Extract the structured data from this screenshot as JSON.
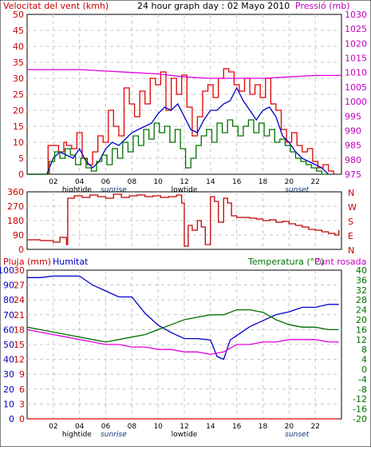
{
  "chart_data": [
    {
      "type": "line",
      "title": "24 hour graph day : 02 Mayo 2010",
      "left_label": "Velocitat del vent (kmh)",
      "right_label": "Pressió (mb)",
      "xlim": [
        0,
        24
      ],
      "x_ticks": [
        "02",
        "04",
        "06",
        "08",
        "10",
        "12",
        "14",
        "16",
        "18",
        "20",
        "22"
      ],
      "tide_sun_labels": [
        {
          "text": "hightide",
          "at": 3.8
        },
        {
          "text": "sunrise",
          "at": 6.6
        },
        {
          "text": "lowtide",
          "at": 12.0
        },
        {
          "text": "sunset",
          "at": 20.6
        }
      ],
      "left_ticks": [
        0,
        5,
        10,
        15,
        20,
        25,
        30,
        35,
        40,
        45,
        50
      ],
      "right_ticks": [
        975,
        980,
        985,
        990,
        995,
        1000,
        1005,
        1010,
        1015,
        1020,
        1025,
        1030
      ],
      "ylim_left": [
        0,
        50
      ],
      "ylim_right": [
        975,
        1030
      ],
      "grid": true,
      "series": [
        {
          "name": "Velocitat del vent (kmh)",
          "axis": "left",
          "color": "#e00000",
          "step": true,
          "x": [
            0,
            1.5,
            1.6,
            2.0,
            2.4,
            2.8,
            3.0,
            3.4,
            3.8,
            4.2,
            4.6,
            5.0,
            5.4,
            5.8,
            6.2,
            6.6,
            7.0,
            7.4,
            7.8,
            8.2,
            8.6,
            9.0,
            9.4,
            9.8,
            10.2,
            10.6,
            11.0,
            11.4,
            11.8,
            12.2,
            12.6,
            13.0,
            13.4,
            13.8,
            14.2,
            14.6,
            15.0,
            15.4,
            15.8,
            16.2,
            16.6,
            17.0,
            17.4,
            17.8,
            18.2,
            18.6,
            19.0,
            19.4,
            19.8,
            20.2,
            20.6,
            21.0,
            21.4,
            21.8,
            22.2,
            22.6,
            23.0,
            23.4
          ],
          "y": [
            0,
            0,
            9,
            9,
            7,
            10,
            9,
            8,
            13,
            5,
            3,
            7,
            12,
            10,
            20,
            15,
            12,
            27,
            22,
            18,
            26,
            22,
            30,
            28,
            32,
            20,
            30,
            25,
            31,
            21,
            12,
            18,
            26,
            28,
            24,
            30,
            33,
            32,
            28,
            26,
            30,
            25,
            28,
            24,
            30,
            22,
            20,
            14,
            10,
            13,
            9,
            7,
            8,
            4,
            2,
            3,
            1,
            0
          ]
        },
        {
          "name": "Velocitat mitjana",
          "axis": "left",
          "color": "#0000c8",
          "step": false,
          "x": [
            0,
            1.5,
            2.0,
            2.5,
            3.0,
            3.5,
            4.0,
            4.5,
            5.0,
            5.5,
            6.0,
            6.5,
            7.0,
            7.5,
            8.0,
            8.5,
            9.0,
            9.5,
            10.0,
            10.5,
            11.0,
            11.5,
            12.0,
            12.5,
            13.0,
            13.5,
            14.0,
            14.5,
            15.0,
            15.5,
            16.0,
            16.5,
            17.0,
            17.5,
            18.0,
            18.5,
            19.0,
            19.5,
            20.0,
            20.5,
            21.0,
            21.5,
            22.0,
            22.5,
            23.0
          ],
          "y": [
            0,
            0,
            5,
            7,
            6,
            5,
            8,
            4,
            2,
            4,
            8,
            10,
            9,
            11,
            13,
            14,
            15,
            16,
            19,
            21,
            20,
            22,
            18,
            14,
            13,
            17,
            20,
            20,
            22,
            23,
            27,
            23,
            20,
            17,
            20,
            21,
            18,
            12,
            10,
            7,
            5,
            4,
            3,
            2,
            0
          ]
        },
        {
          "name": "Ratxa",
          "axis": "left",
          "color": "#007000",
          "step": true,
          "x": [
            0,
            1.5,
            1.7,
            2.1,
            2.5,
            2.9,
            3.3,
            3.7,
            4.1,
            4.5,
            4.9,
            5.3,
            5.7,
            6.1,
            6.5,
            6.9,
            7.3,
            7.7,
            8.1,
            8.5,
            8.9,
            9.3,
            9.7,
            10.1,
            10.5,
            10.9,
            11.3,
            11.7,
            12.1,
            12.5,
            12.9,
            13.3,
            13.7,
            14.1,
            14.5,
            14.9,
            15.3,
            15.7,
            16.1,
            16.5,
            16.9,
            17.3,
            17.7,
            18.1,
            18.5,
            18.9,
            19.3,
            19.7,
            20.1,
            20.5,
            20.9,
            21.3,
            21.7,
            22.1,
            22.5,
            23.0
          ],
          "y": [
            0,
            0,
            4,
            7,
            5,
            8,
            6,
            3,
            5,
            2,
            1,
            4,
            6,
            3,
            8,
            5,
            10,
            7,
            12,
            9,
            14,
            11,
            16,
            13,
            15,
            10,
            14,
            8,
            2,
            5,
            9,
            12,
            14,
            10,
            16,
            13,
            17,
            15,
            12,
            15,
            17,
            13,
            16,
            12,
            14,
            10,
            11,
            9,
            7,
            5,
            4,
            3,
            2,
            1,
            0,
            0
          ]
        },
        {
          "name": "Pressió (mb)",
          "axis": "right",
          "color": "#e000e0",
          "step": false,
          "x": [
            0,
            2,
            4,
            6,
            8,
            10,
            12,
            14,
            16,
            18,
            20,
            22,
            24
          ],
          "y": [
            1011,
            1011,
            1011,
            1010.5,
            1010,
            1009.5,
            1008.5,
            1008,
            1008,
            1008,
            1008.5,
            1009,
            1009
          ]
        }
      ]
    },
    {
      "type": "line",
      "title": "",
      "left_ticks": [
        0,
        90,
        180,
        270,
        360
      ],
      "right_labels": [
        "N",
        "W",
        "S",
        "E",
        "N"
      ],
      "ylim": [
        0,
        360
      ],
      "grid": true,
      "series": [
        {
          "name": "Direcció del vent",
          "color": "#c00000",
          "step": true,
          "x": [
            0,
            1.0,
            2.0,
            2.5,
            3.0,
            3.1,
            3.6,
            4.2,
            4.8,
            5.4,
            6.0,
            6.6,
            7.2,
            7.8,
            8.4,
            9.0,
            9.6,
            10.2,
            10.8,
            11.4,
            11.8,
            12.0,
            12.3,
            12.6,
            13.0,
            13.3,
            13.6,
            14.0,
            14.3,
            14.6,
            15.0,
            15.3,
            15.6,
            16.0,
            16.5,
            17.0,
            17.5,
            18.0,
            18.5,
            19.0,
            19.5,
            20.0,
            20.5,
            21.0,
            21.5,
            22.0,
            22.5,
            23.0,
            23.5,
            23.8
          ],
          "y": [
            60,
            55,
            45,
            75,
            30,
            320,
            335,
            325,
            340,
            330,
            320,
            345,
            325,
            335,
            340,
            330,
            335,
            325,
            330,
            340,
            290,
            20,
            150,
            120,
            180,
            140,
            30,
            330,
            300,
            170,
            320,
            290,
            210,
            200,
            200,
            195,
            190,
            180,
            185,
            170,
            175,
            160,
            150,
            140,
            125,
            120,
            110,
            100,
            90,
            120
          ]
        }
      ]
    },
    {
      "type": "line",
      "title": "",
      "left_label_red": "Pluja (mm)",
      "left_label_blue": "Humitat",
      "right_label_green": "Temperatura (°C)",
      "right_label_magenta": "Punt rosada",
      "xlim": [
        0,
        24
      ],
      "x_ticks": [
        "02",
        "04",
        "06",
        "08",
        "10",
        "12",
        "14",
        "16",
        "18",
        "20",
        "22"
      ],
      "tide_sun_labels": [
        {
          "text": "hightide",
          "at": 3.8
        },
        {
          "text": "sunrise",
          "at": 6.6
        },
        {
          "text": "lowtide",
          "at": 12.0
        },
        {
          "text": "sunset",
          "at": 20.6
        }
      ],
      "rain_ticks": [
        0,
        3,
        6,
        9,
        12,
        15,
        18,
        21,
        24,
        27,
        30
      ],
      "humidity_ticks": [
        0,
        10,
        20,
        30,
        40,
        50,
        60,
        70,
        80,
        90,
        100
      ],
      "temp_ticks": [
        -20,
        -16,
        -12,
        -8,
        -4,
        0,
        4,
        8,
        12,
        16,
        20,
        24,
        28,
        32,
        36,
        40
      ],
      "ylim_humidity": [
        0,
        100
      ],
      "ylim_temp": [
        -20,
        40
      ],
      "grid": true,
      "series": [
        {
          "name": "Humitat",
          "axis": "humidity",
          "color": "#0000c8",
          "x": [
            0,
            1,
            2,
            3,
            4,
            5,
            6,
            7,
            8,
            9,
            10,
            11,
            12,
            13,
            14,
            14.5,
            15,
            15.5,
            16,
            17,
            18,
            19,
            20,
            21,
            22,
            23,
            23.8
          ],
          "y": [
            95,
            95,
            96,
            96,
            96,
            90,
            86,
            82,
            82,
            71,
            63,
            58,
            54,
            54,
            53,
            42,
            40,
            53,
            56,
            62,
            66,
            70,
            72,
            75,
            75,
            77,
            77
          ]
        },
        {
          "name": "Temperatura (°C)",
          "axis": "temp",
          "color": "#007000",
          "x": [
            0,
            1,
            2,
            3,
            4,
            5,
            6,
            7,
            8,
            9,
            10,
            11,
            12,
            13,
            14,
            15,
            16,
            17,
            18,
            19,
            20,
            21,
            22,
            23,
            23.8
          ],
          "y": [
            17,
            16,
            15,
            14,
            13,
            12,
            11,
            12,
            13,
            14,
            16,
            18,
            20,
            21,
            22,
            22,
            24,
            24,
            23,
            20,
            18,
            17,
            17,
            16,
            16
          ]
        },
        {
          "name": "Punt rosada",
          "axis": "temp",
          "color": "#e000e0",
          "x": [
            0,
            1,
            2,
            3,
            4,
            5,
            6,
            7,
            8,
            9,
            10,
            11,
            12,
            13,
            14,
            15,
            16,
            17,
            18,
            19,
            20,
            21,
            22,
            23,
            23.8
          ],
          "y": [
            16,
            15,
            14,
            13,
            12,
            11,
            10,
            10,
            9,
            9,
            8,
            8,
            7,
            7,
            6,
            7,
            10,
            10,
            11,
            11,
            12,
            12,
            12,
            11,
            11
          ]
        },
        {
          "name": "Pluja (mm)",
          "axis": "rain",
          "color": "#e00000",
          "x": [
            0,
            23.8
          ],
          "y": [
            0,
            0
          ]
        }
      ]
    }
  ]
}
